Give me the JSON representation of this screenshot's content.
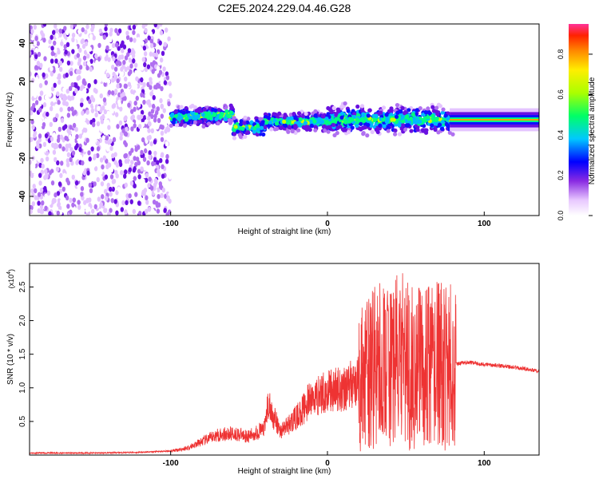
{
  "title": "C2E5.2024.229.04.46.G28",
  "chart_data": [
    {
      "type": "heatmap",
      "xlabel": "Height of straight line (km)",
      "ylabel": "Frequency (Hz)",
      "xlim": [
        -190,
        135
      ],
      "ylim": [
        -50,
        50
      ],
      "xticks": [
        -100,
        0,
        100
      ],
      "yticks": [
        40,
        20,
        0,
        -20,
        -40
      ],
      "colorbar": {
        "label": "Normalized spectral amplitude",
        "ticks": [
          0.0,
          0.2,
          0.4,
          0.6,
          0.8
        ],
        "range": [
          0,
          0.95
        ]
      }
    },
    {
      "type": "line",
      "xlabel": "Height of straight line (km)",
      "ylabel": "SNR (10 * v/v)",
      "yscale_note": "(x10",
      "yscale_exp": "4",
      "xlim": [
        -190,
        135
      ],
      "ylim": [
        0,
        2.85
      ],
      "xticks": [
        -100,
        0,
        100
      ],
      "yticks": [
        0.5,
        1.0,
        1.5,
        2.0,
        2.5
      ],
      "color": "#ee3333",
      "x": [
        -190,
        -150,
        -120,
        -100,
        -90,
        -80,
        -70,
        -60,
        -50,
        -40,
        -38,
        -30,
        -20,
        -10,
        0,
        10,
        20,
        30,
        40,
        50,
        60,
        70,
        75,
        80,
        90,
        100,
        110,
        120,
        135
      ],
      "y": [
        0.03,
        0.03,
        0.04,
        0.06,
        0.1,
        0.2,
        0.3,
        0.32,
        0.28,
        0.4,
        0.75,
        0.35,
        0.55,
        0.85,
        0.95,
        1.0,
        1.1,
        1.3,
        1.35,
        1.4,
        1.25,
        1.35,
        1.3,
        1.35,
        1.38,
        1.35,
        1.33,
        1.3,
        1.25
      ]
    }
  ]
}
